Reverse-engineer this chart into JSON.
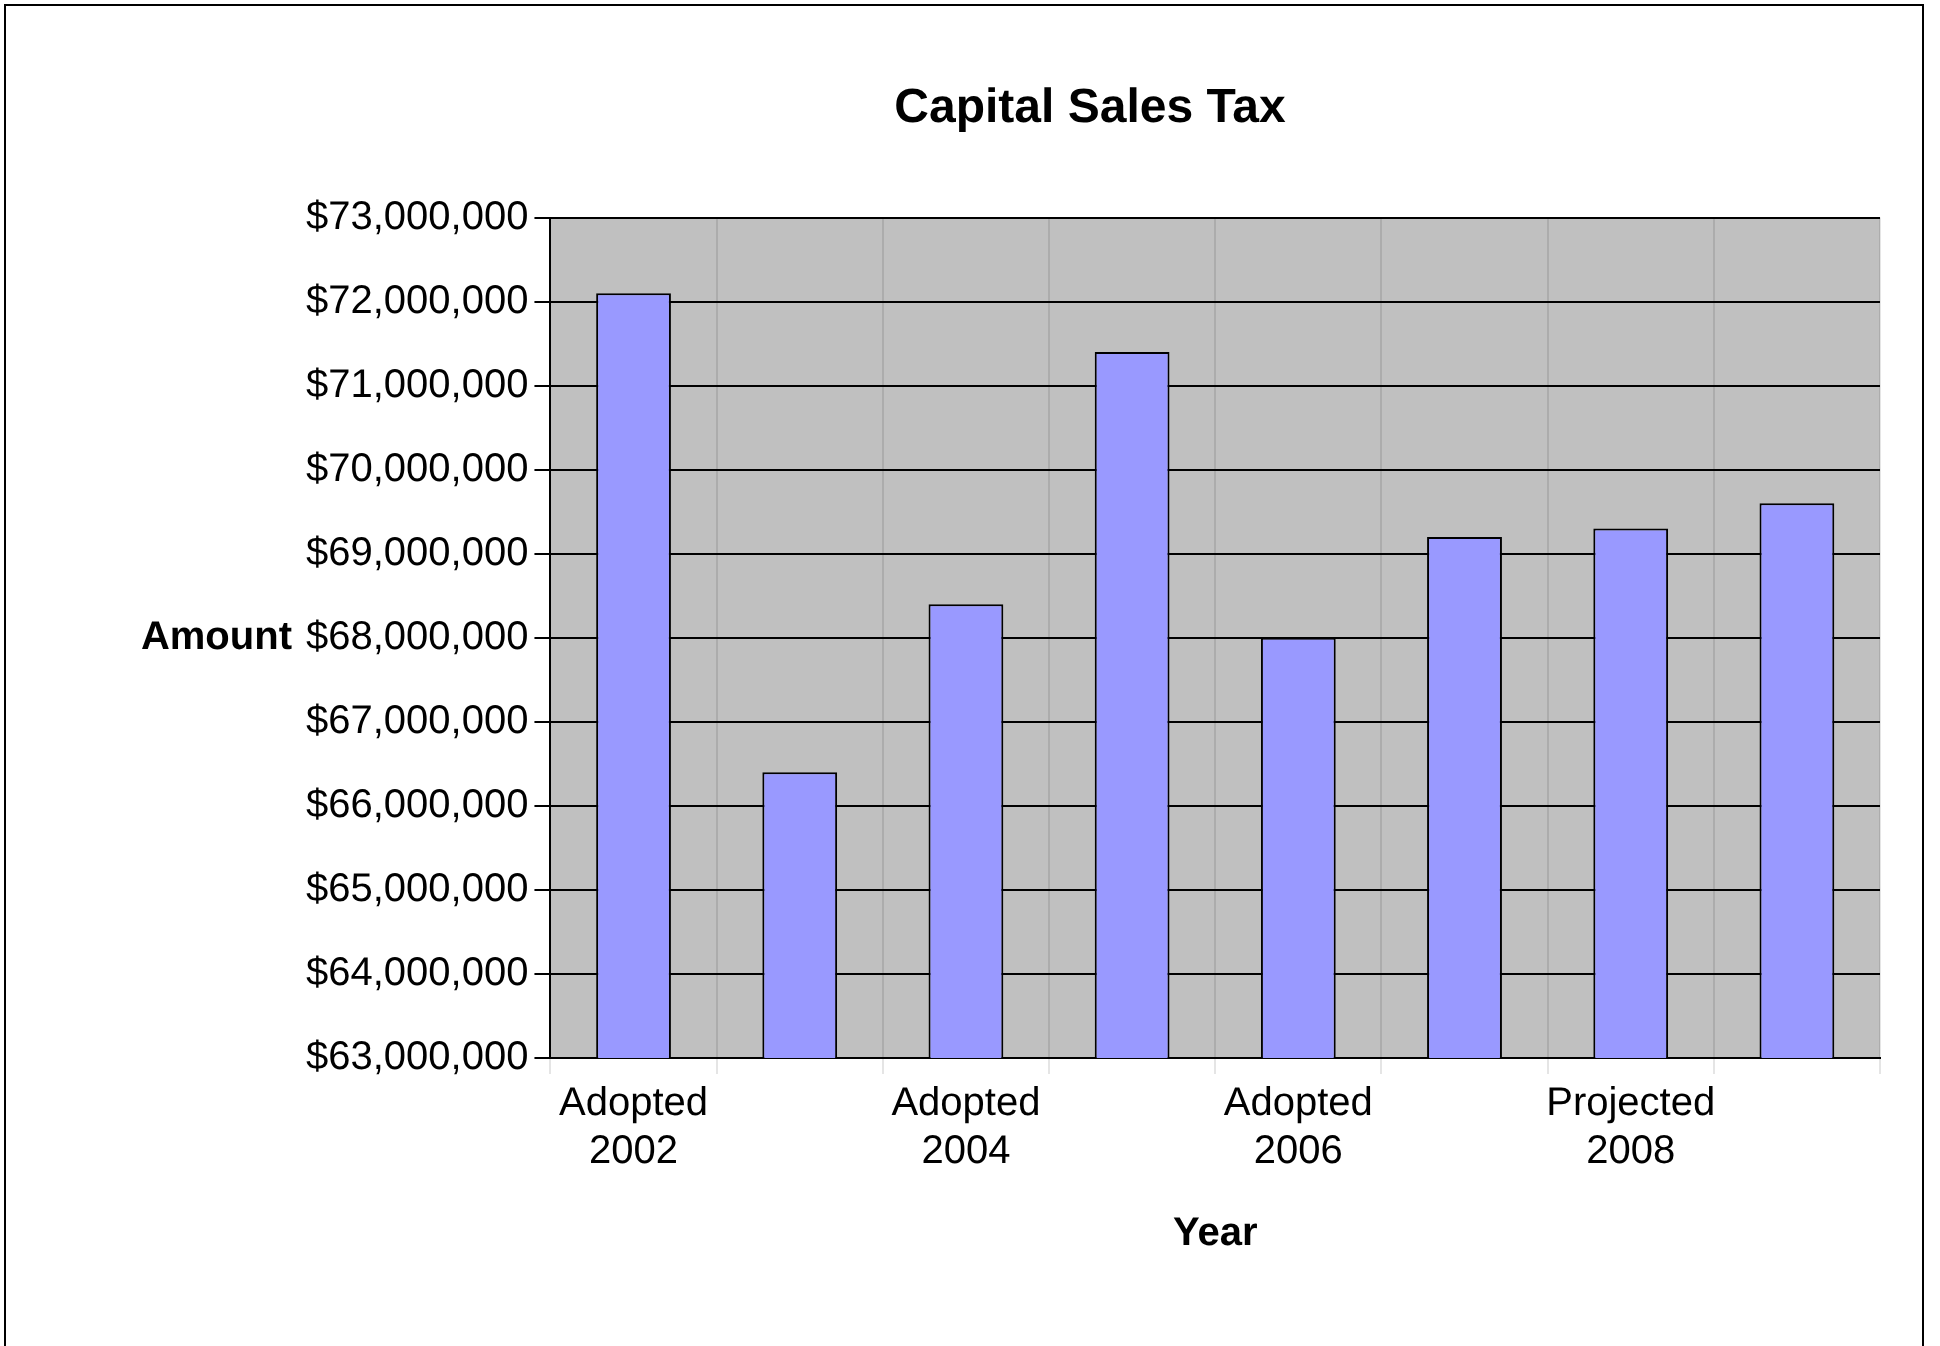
{
  "chart_data": {
    "type": "bar",
    "title": "Capital Sales Tax",
    "xlabel": "Year",
    "ylabel": "Amount",
    "categories": [
      "Adopted 2002",
      null,
      "Adopted 2004",
      null,
      "Adopted 2006",
      null,
      "Projected 2008",
      null
    ],
    "values": [
      72100000,
      66400000,
      68400000,
      71400000,
      68000000,
      69200000,
      69300000,
      69600000
    ],
    "color": "#9999ff",
    "ylim": [
      63000000,
      73000000
    ],
    "yticks": [
      {
        "value": 63000000,
        "label": "$63,000,000"
      },
      {
        "value": 64000000,
        "label": "$64,000,000"
      },
      {
        "value": 65000000,
        "label": "$65,000,000"
      },
      {
        "value": 66000000,
        "label": "$66,000,000"
      },
      {
        "value": 67000000,
        "label": "$67,000,000"
      },
      {
        "value": 68000000,
        "label": "$68,000,000"
      },
      {
        "value": 69000000,
        "label": "$69,000,000"
      },
      {
        "value": 70000000,
        "label": "$70,000,000"
      },
      {
        "value": 71000000,
        "label": "$71,000,000"
      },
      {
        "value": 72000000,
        "label": "$72,000,000"
      },
      {
        "value": 73000000,
        "label": "$73,000,000"
      }
    ],
    "grid": true,
    "legend": false
  }
}
